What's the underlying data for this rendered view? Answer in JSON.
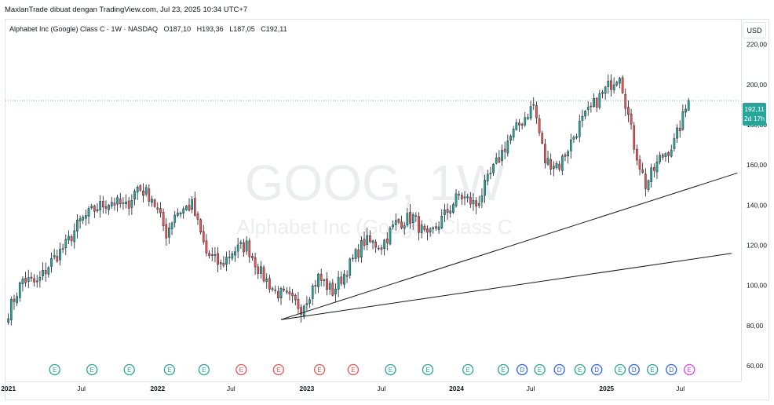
{
  "header": {
    "attribution": "MaxlanTrade dibuat dengan TradingView.com, Jul 23, 2025 10:34 UTC+7"
  },
  "legend": {
    "title": "Alphabet Inc (Google) Class C · 1W · NASDAQ",
    "o_label": "O",
    "o_value": "187,10",
    "h_label": "H",
    "h_value": "193,36",
    "l_label": "L",
    "l_value": "187,05",
    "c_label": "C",
    "c_value": "192,11"
  },
  "currency": "USD",
  "watermark": {
    "symbol": "GOOG, 1W",
    "name": "Alphabet Inc (Google) Class C"
  },
  "price_tag": {
    "price": "192,11",
    "countdown": "2d 17h"
  },
  "colors": {
    "up": "#26a69a",
    "down": "#ef5350",
    "earnings_up": "#26a69a",
    "earnings_down": "#ef5350",
    "dividend": "#2962ff",
    "future_event": "#e040fb"
  },
  "events": [
    {
      "type": "E",
      "color": "up",
      "date": "2021-04-27"
    },
    {
      "type": "E",
      "color": "up",
      "date": "2021-07-27"
    },
    {
      "type": "E",
      "color": "up",
      "date": "2021-10-26"
    },
    {
      "type": "E",
      "color": "up",
      "date": "2022-02-01"
    },
    {
      "type": "E",
      "color": "up",
      "date": "2022-04-26"
    },
    {
      "type": "E",
      "color": "down",
      "date": "2022-07-26"
    },
    {
      "type": "E",
      "color": "down",
      "date": "2022-10-25"
    },
    {
      "type": "E",
      "color": "down",
      "date": "2023-02-02"
    },
    {
      "type": "E",
      "color": "down",
      "date": "2023-04-25"
    },
    {
      "type": "E",
      "color": "up",
      "date": "2023-07-25"
    },
    {
      "type": "E",
      "color": "up",
      "date": "2023-10-24"
    },
    {
      "type": "E",
      "color": "up",
      "date": "2024-01-30"
    },
    {
      "type": "E",
      "color": "up",
      "date": "2024-04-25"
    },
    {
      "type": "E",
      "color": "up",
      "date": "2024-07-23"
    },
    {
      "type": "D",
      "color": "dividend",
      "date": "2024-06-10"
    },
    {
      "type": "D",
      "color": "dividend",
      "date": "2024-09-09"
    },
    {
      "type": "E",
      "color": "up",
      "date": "2024-10-29"
    },
    {
      "type": "D",
      "color": "dividend",
      "date": "2024-12-09"
    },
    {
      "type": "E",
      "color": "up",
      "date": "2025-02-04"
    },
    {
      "type": "D",
      "color": "dividend",
      "date": "2025-03-10"
    },
    {
      "type": "E",
      "color": "up",
      "date": "2025-04-24"
    },
    {
      "type": "D",
      "color": "dividend",
      "date": "2025-06-09"
    },
    {
      "type": "E",
      "color": "future",
      "date": "2025-07-23"
    }
  ],
  "chart_data": {
    "type": "candlestick",
    "interval": "1W",
    "y_axis": {
      "ticks": [
        60,
        80,
        100,
        120,
        140,
        160,
        180,
        200,
        220
      ],
      "tick_labels": [
        "60,00",
        "80,00",
        "100,00",
        "120,00",
        "140,00",
        "160,00",
        "180,00",
        "200,00",
        "220,00"
      ],
      "range": [
        53,
        232
      ]
    },
    "x_axis": {
      "ticks": [
        {
          "date": "2021-01-04",
          "label": "2021"
        },
        {
          "date": "2021-07-01",
          "label": "Jul"
        },
        {
          "date": "2022-01-03",
          "label": "2022"
        },
        {
          "date": "2022-07-01",
          "label": "Jul"
        },
        {
          "date": "2023-01-02",
          "label": "2023"
        },
        {
          "date": "2023-07-03",
          "label": "Jul"
        },
        {
          "date": "2024-01-02",
          "label": "2024"
        },
        {
          "date": "2024-07-01",
          "label": "Jul"
        },
        {
          "date": "2025-01-02",
          "label": "2025"
        },
        {
          "date": "2025-07-01",
          "label": "Jul"
        }
      ],
      "range": [
        "2020-12-28",
        "2025-11-24"
      ]
    },
    "last_price": 192.11,
    "trendlines": [
      {
        "from": {
          "date": "2022-10-31",
          "price": 83
        },
        "to": {
          "date": "2025-11-17",
          "price": 156
        }
      },
      {
        "from": {
          "date": "2022-10-31",
          "price": 83
        },
        "to": {
          "date": "2025-11-03",
          "price": 116
        }
      }
    ],
    "weekly_closes": [
      {
        "date": "2021-01-04",
        "close": 87
      },
      {
        "date": "2021-02-08",
        "close": 103
      },
      {
        "date": "2021-03-15",
        "close": 101
      },
      {
        "date": "2021-04-19",
        "close": 112
      },
      {
        "date": "2021-05-24",
        "close": 120
      },
      {
        "date": "2021-06-28",
        "close": 132
      },
      {
        "date": "2021-08-09",
        "close": 139
      },
      {
        "date": "2021-09-13",
        "close": 142
      },
      {
        "date": "2021-10-18",
        "close": 139
      },
      {
        "date": "2021-11-15",
        "close": 149
      },
      {
        "date": "2021-12-20",
        "close": 144
      },
      {
        "date": "2022-01-24",
        "close": 126
      },
      {
        "date": "2022-02-14",
        "close": 136
      },
      {
        "date": "2022-03-28",
        "close": 140
      },
      {
        "date": "2022-05-02",
        "close": 116
      },
      {
        "date": "2022-06-06",
        "close": 110
      },
      {
        "date": "2022-07-04",
        "close": 117
      },
      {
        "date": "2022-08-08",
        "close": 120
      },
      {
        "date": "2022-09-12",
        "close": 106
      },
      {
        "date": "2022-10-17",
        "close": 97
      },
      {
        "date": "2022-11-07",
        "close": 95
      },
      {
        "date": "2022-12-19",
        "close": 89
      },
      {
        "date": "2023-01-30",
        "close": 104
      },
      {
        "date": "2023-03-06",
        "close": 97
      },
      {
        "date": "2023-04-10",
        "close": 108
      },
      {
        "date": "2023-05-22",
        "close": 122
      },
      {
        "date": "2023-07-03",
        "close": 120
      },
      {
        "date": "2023-08-07",
        "close": 131
      },
      {
        "date": "2023-09-18",
        "close": 134
      },
      {
        "date": "2023-10-23",
        "close": 123
      },
      {
        "date": "2023-11-27",
        "close": 133
      },
      {
        "date": "2024-01-08",
        "close": 145
      },
      {
        "date": "2024-02-19",
        "close": 140
      },
      {
        "date": "2024-03-25",
        "close": 155
      },
      {
        "date": "2024-05-06",
        "close": 172
      },
      {
        "date": "2024-07-08",
        "close": 190
      },
      {
        "date": "2024-08-05",
        "close": 162
      },
      {
        "date": "2024-09-09",
        "close": 160
      },
      {
        "date": "2024-10-28",
        "close": 180
      },
      {
        "date": "2024-12-09",
        "close": 192
      },
      {
        "date": "2025-02-03",
        "close": 206
      },
      {
        "date": "2025-03-10",
        "close": 170
      },
      {
        "date": "2025-04-07",
        "close": 150
      },
      {
        "date": "2025-05-12",
        "close": 163
      },
      {
        "date": "2025-06-16",
        "close": 171
      },
      {
        "date": "2025-07-21",
        "close": 192
      }
    ]
  }
}
